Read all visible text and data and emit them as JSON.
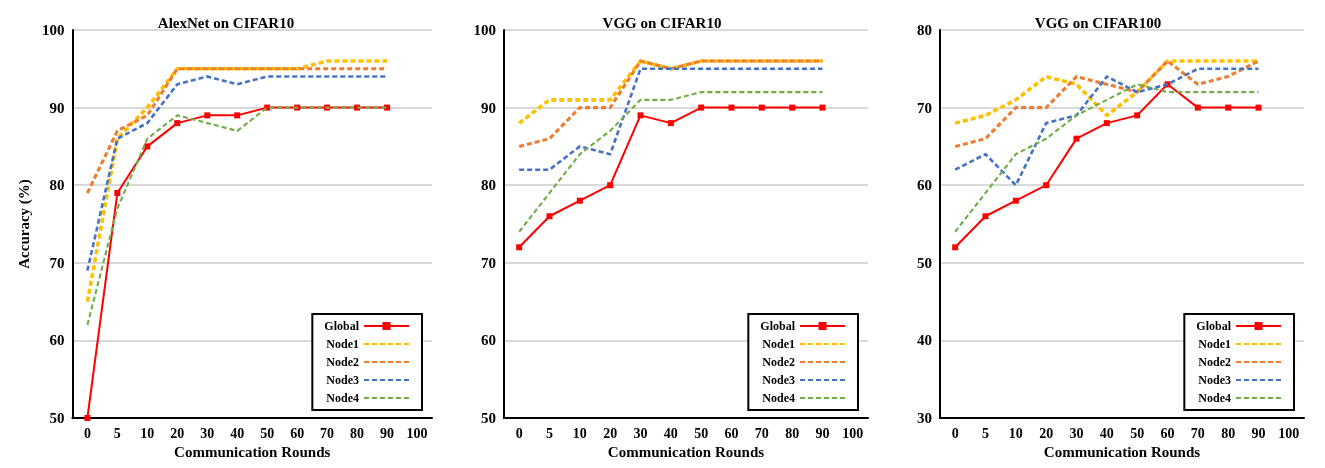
{
  "chart_data": [
    {
      "type": "line",
      "title": "AlexNet on CIFAR10",
      "xlabel": "Communication Rounds",
      "ylabel": "Accuracy (%)",
      "categories": [
        "0",
        "5",
        "10",
        "20",
        "30",
        "40",
        "50",
        "60",
        "70",
        "80",
        "90",
        "100"
      ],
      "ylim": [
        50,
        100
      ],
      "yticks": [
        50,
        60,
        70,
        80,
        90,
        100
      ],
      "grid": "y",
      "legend": "bottom right",
      "series": [
        {
          "name": "Global",
          "color": "#ff0000",
          "marker": "square",
          "line_style": "solid",
          "values": [
            50,
            79,
            85,
            88,
            89,
            89,
            90,
            90,
            90,
            90,
            90,
            null
          ]
        },
        {
          "name": "Node1",
          "color": "#ffc000",
          "marker": "none",
          "line_style": "dashed",
          "values": [
            65,
            86,
            90,
            95,
            95,
            95,
            95,
            95,
            96,
            96,
            96,
            null
          ]
        },
        {
          "name": "Node2",
          "color": "#ed7d31",
          "marker": "none",
          "line_style": "dashed",
          "values": [
            79,
            87,
            89,
            95,
            95,
            95,
            95,
            95,
            95,
            95,
            95,
            null
          ]
        },
        {
          "name": "Node3",
          "color": "#4472c4",
          "marker": "none",
          "line_style": "dashed",
          "values": [
            69,
            86,
            88,
            93,
            94,
            93,
            94,
            94,
            94,
            94,
            94,
            null
          ]
        },
        {
          "name": "Node4",
          "color": "#70ad47",
          "marker": "none",
          "line_style": "dashed",
          "values": [
            62,
            77,
            86,
            89,
            88,
            87,
            90,
            90,
            90,
            90,
            90,
            null
          ]
        }
      ]
    },
    {
      "type": "line",
      "title": "VGG on CIFAR10",
      "xlabel": "Communication Rounds",
      "categories": [
        "0",
        "5",
        "10",
        "20",
        "30",
        "40",
        "50",
        "60",
        "70",
        "80",
        "90",
        "100"
      ],
      "ylim": [
        50,
        100
      ],
      "yticks": [
        50,
        60,
        70,
        80,
        90,
        100
      ],
      "grid": "y",
      "legend": "bottom right",
      "series": [
        {
          "name": "Global",
          "color": "#ff0000",
          "marker": "square",
          "line_style": "solid",
          "values": [
            72,
            76,
            78,
            80,
            89,
            88,
            90,
            90,
            90,
            90,
            90,
            null
          ]
        },
        {
          "name": "Node1",
          "color": "#ffc000",
          "marker": "none",
          "line_style": "dashed",
          "values": [
            88,
            91,
            91,
            91,
            96,
            95,
            96,
            96,
            96,
            96,
            96,
            null
          ]
        },
        {
          "name": "Node2",
          "color": "#ed7d31",
          "marker": "none",
          "line_style": "dashed",
          "values": [
            85,
            86,
            90,
            90,
            96,
            95,
            96,
            96,
            96,
            96,
            96,
            null
          ]
        },
        {
          "name": "Node3",
          "color": "#4472c4",
          "marker": "none",
          "line_style": "dashed",
          "values": [
            82,
            82,
            85,
            84,
            95,
            95,
            95,
            95,
            95,
            95,
            95,
            null
          ]
        },
        {
          "name": "Node4",
          "color": "#70ad47",
          "marker": "none",
          "line_style": "dashed",
          "values": [
            74,
            79,
            84,
            87,
            91,
            91,
            92,
            92,
            92,
            92,
            92,
            null
          ]
        }
      ]
    },
    {
      "type": "line",
      "title": "VGG on CIFAR100",
      "xlabel": "Communication Rounds",
      "categories": [
        "0",
        "5",
        "10",
        "20",
        "30",
        "40",
        "50",
        "60",
        "70",
        "80",
        "90",
        "100"
      ],
      "ylim": [
        30,
        80
      ],
      "yticks": [
        30,
        40,
        50,
        60,
        70,
        80
      ],
      "grid": "y",
      "legend": "bottom right",
      "series": [
        {
          "name": "Global",
          "color": "#ff0000",
          "marker": "square",
          "line_style": "solid",
          "values": [
            52,
            56,
            58,
            60,
            66,
            68,
            69,
            73,
            70,
            70,
            70,
            null
          ]
        },
        {
          "name": "Node1",
          "color": "#ffc000",
          "marker": "none",
          "line_style": "dashed",
          "values": [
            68,
            69,
            71,
            74,
            73,
            69,
            72,
            76,
            76,
            76,
            76,
            null
          ]
        },
        {
          "name": "Node2",
          "color": "#ed7d31",
          "marker": "none",
          "line_style": "dashed",
          "values": [
            65,
            66,
            70,
            70,
            74,
            73,
            72,
            76,
            73,
            74,
            76,
            null
          ]
        },
        {
          "name": "Node3",
          "color": "#4472c4",
          "marker": "none",
          "line_style": "dashed",
          "values": [
            62,
            64,
            60,
            68,
            69,
            74,
            72,
            73,
            75,
            75,
            75,
            null
          ]
        },
        {
          "name": "Node4",
          "color": "#70ad47",
          "marker": "none",
          "line_style": "dashed",
          "values": [
            54,
            59,
            64,
            66,
            69,
            71,
            73,
            72,
            72,
            72,
            72,
            null
          ]
        }
      ]
    }
  ]
}
